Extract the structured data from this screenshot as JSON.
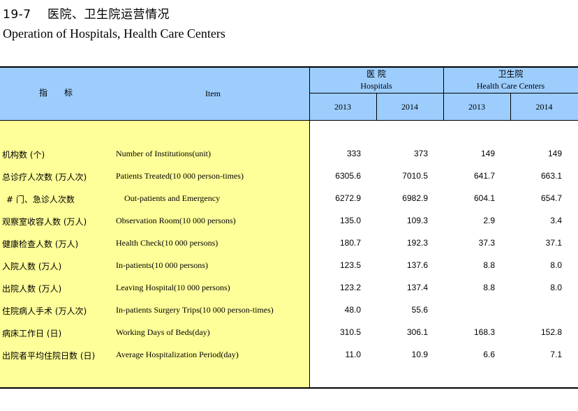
{
  "title": {
    "cn": "19-7　 医院、卫生院运营情况",
    "en": "Operation of Hospitals, Health Care Centers"
  },
  "header": {
    "indicator_cn": "指　　标",
    "item_en": "Item",
    "hospitals_cn": "医 院",
    "hospitals_en": "Hospitals",
    "hcc_cn": "卫生院",
    "hcc_en": "Health Care Centers",
    "years": [
      "2013",
      "2014",
      "2013",
      "2014"
    ]
  },
  "rows": [
    {
      "cn": "机构数 (个)",
      "en": "Number of Institutions(unit)",
      "v": [
        "333",
        "373",
        "149",
        "149"
      ]
    },
    {
      "cn": "总诊疗人次数 (万人次)",
      "en": "Patients Treated(10 000 person-times)",
      "v": [
        "6305.6",
        "7010.5",
        "641.7",
        "663.1"
      ]
    },
    {
      "cn": "  # 门、急诊人次数",
      "en": "Out-patients and Emergency",
      "v": [
        "6272.9",
        "6982.9",
        "604.1",
        "654.7"
      ]
    },
    {
      "cn": "观察室收容人数 (万人)",
      "en": "Observation Room(10 000 persons)",
      "v": [
        "135.0",
        "109.3",
        "2.9",
        "3.4"
      ]
    },
    {
      "cn": "健康检查人数 (万人)",
      "en": "Health Check(10 000 persons)",
      "v": [
        "180.7",
        "192.3",
        "37.3",
        "37.1"
      ]
    },
    {
      "cn": "入院人数 (万人)",
      "en": "In-patients(10 000 persons)",
      "v": [
        "123.5",
        "137.6",
        "8.8",
        "8.0"
      ]
    },
    {
      "cn": "出院人数 (万人)",
      "en": "Leaving Hospital(10 000 persons)",
      "v": [
        "123.2",
        "137.4",
        "8.8",
        "8.0"
      ]
    },
    {
      "cn": "住院病人手术 (万人次)",
      "en": "In-patients Surgery Trips(10 000 person-times)",
      "v": [
        "48.0",
        "55.6",
        "",
        ""
      ]
    },
    {
      "cn": "病床工作日 (日)",
      "en": "Working Days of Beds(day)",
      "v": [
        "310.5",
        "306.1",
        "168.3",
        "152.8"
      ]
    },
    {
      "cn": "出院者平均住院日数 (日)",
      "en": "Average Hospitalization Period(day)",
      "v": [
        "11.0",
        "10.9",
        "6.6",
        "7.1"
      ]
    }
  ]
}
